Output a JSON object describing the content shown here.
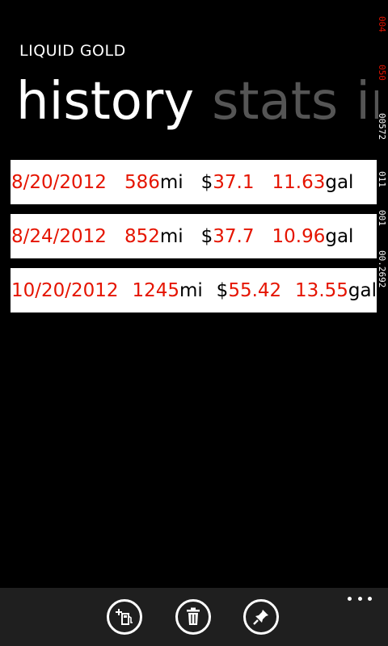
{
  "app": {
    "title": "LIQUID GOLD"
  },
  "pivot": {
    "headers": [
      {
        "label": "history",
        "active": true
      },
      {
        "label": "stats",
        "active": false
      },
      {
        "label": "in",
        "active": false
      }
    ]
  },
  "history": {
    "entries": [
      {
        "date": "8/20/2012",
        "miles": "586",
        "miles_unit": "mi",
        "currency": "$",
        "cost": "37.1",
        "gallons": "11.63",
        "gallons_unit": "gal"
      },
      {
        "date": "8/24/2012",
        "miles": "852",
        "miles_unit": "mi",
        "currency": "$",
        "cost": "37.7",
        "gallons": "10.96",
        "gallons_unit": "gal"
      },
      {
        "date": "10/20/2012",
        "miles": "1245",
        "miles_unit": "mi",
        "currency": "$",
        "cost": "55.42",
        "gallons": "13.55",
        "gallons_unit": "gal"
      }
    ]
  },
  "debug_counter": {
    "segments": [
      "004",
      "050",
      "00572",
      "011",
      "001",
      "00.2692"
    ],
    "colors": {
      "red": "#e51400",
      "white": "#ffffff"
    }
  },
  "app_bar": {
    "buttons": [
      {
        "icon": "add-fuel-icon"
      },
      {
        "icon": "delete-icon"
      },
      {
        "icon": "pin-icon"
      }
    ],
    "more_icon": "more-dots-icon"
  },
  "colors": {
    "accent": "#e51400",
    "background": "#000000",
    "card": "#ffffff",
    "pivot_inactive": "#555555",
    "app_bar": "#1f1f1f"
  }
}
